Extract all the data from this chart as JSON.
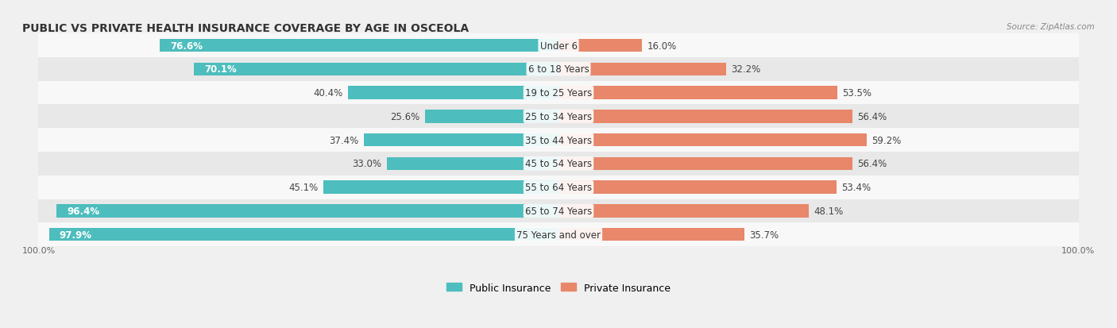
{
  "title": "PUBLIC VS PRIVATE HEALTH INSURANCE COVERAGE BY AGE IN OSCEOLA",
  "source": "Source: ZipAtlas.com",
  "categories": [
    "Under 6",
    "6 to 18 Years",
    "19 to 25 Years",
    "25 to 34 Years",
    "35 to 44 Years",
    "45 to 54 Years",
    "55 to 64 Years",
    "65 to 74 Years",
    "75 Years and over"
  ],
  "public_values": [
    76.6,
    70.1,
    40.4,
    25.6,
    37.4,
    33.0,
    45.1,
    96.4,
    97.9
  ],
  "private_values": [
    16.0,
    32.2,
    53.5,
    56.4,
    59.2,
    56.4,
    53.4,
    48.1,
    35.7
  ],
  "public_color": "#4dbdbd",
  "private_color": "#e8876a",
  "bg_color": "#f0f0f0",
  "row_bg_light": "#f8f8f8",
  "row_bg_dark": "#e8e8e8",
  "bar_height": 0.55,
  "max_val": 100,
  "label_100_left": "100.0%",
  "label_100_right": "100.0%",
  "title_fontsize": 10,
  "label_fontsize": 8.5,
  "category_fontsize": 8.5,
  "legend_fontsize": 9
}
